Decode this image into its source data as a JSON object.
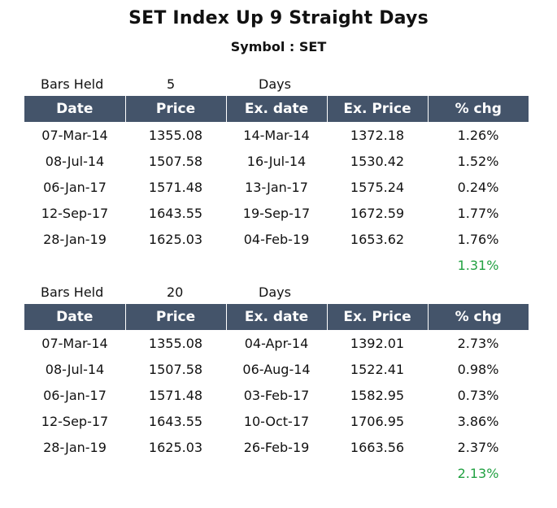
{
  "title": "SET Index Up 9 Straight Days",
  "subtitle": "Symbol : SET",
  "columns": [
    "Date",
    "Price",
    "Ex. date",
    "Ex. Price",
    "% chg"
  ],
  "colors": {
    "header_bg": "#44546a",
    "average_text": "#22a142"
  },
  "tables": [
    {
      "bars_label": "Bars Held",
      "bars_value": "5",
      "bars_unit": "Days",
      "rows": [
        [
          "07-Mar-14",
          "1355.08",
          "14-Mar-14",
          "1372.18",
          "1.26%"
        ],
        [
          "08-Jul-14",
          "1507.58",
          "16-Jul-14",
          "1530.42",
          "1.52%"
        ],
        [
          "06-Jan-17",
          "1571.48",
          "13-Jan-17",
          "1575.24",
          "0.24%"
        ],
        [
          "12-Sep-17",
          "1643.55",
          "19-Sep-17",
          "1672.59",
          "1.77%"
        ],
        [
          "28-Jan-19",
          "1625.03",
          "04-Feb-19",
          "1653.62",
          "1.76%"
        ]
      ],
      "average": "1.31%"
    },
    {
      "bars_label": "Bars Held",
      "bars_value": "20",
      "bars_unit": "Days",
      "rows": [
        [
          "07-Mar-14",
          "1355.08",
          "04-Apr-14",
          "1392.01",
          "2.73%"
        ],
        [
          "08-Jul-14",
          "1507.58",
          "06-Aug-14",
          "1522.41",
          "0.98%"
        ],
        [
          "06-Jan-17",
          "1571.48",
          "03-Feb-17",
          "1582.95",
          "0.73%"
        ],
        [
          "12-Sep-17",
          "1643.55",
          "10-Oct-17",
          "1706.95",
          "3.86%"
        ],
        [
          "28-Jan-19",
          "1625.03",
          "26-Feb-19",
          "1663.56",
          "2.37%"
        ]
      ],
      "average": "2.13%"
    }
  ]
}
